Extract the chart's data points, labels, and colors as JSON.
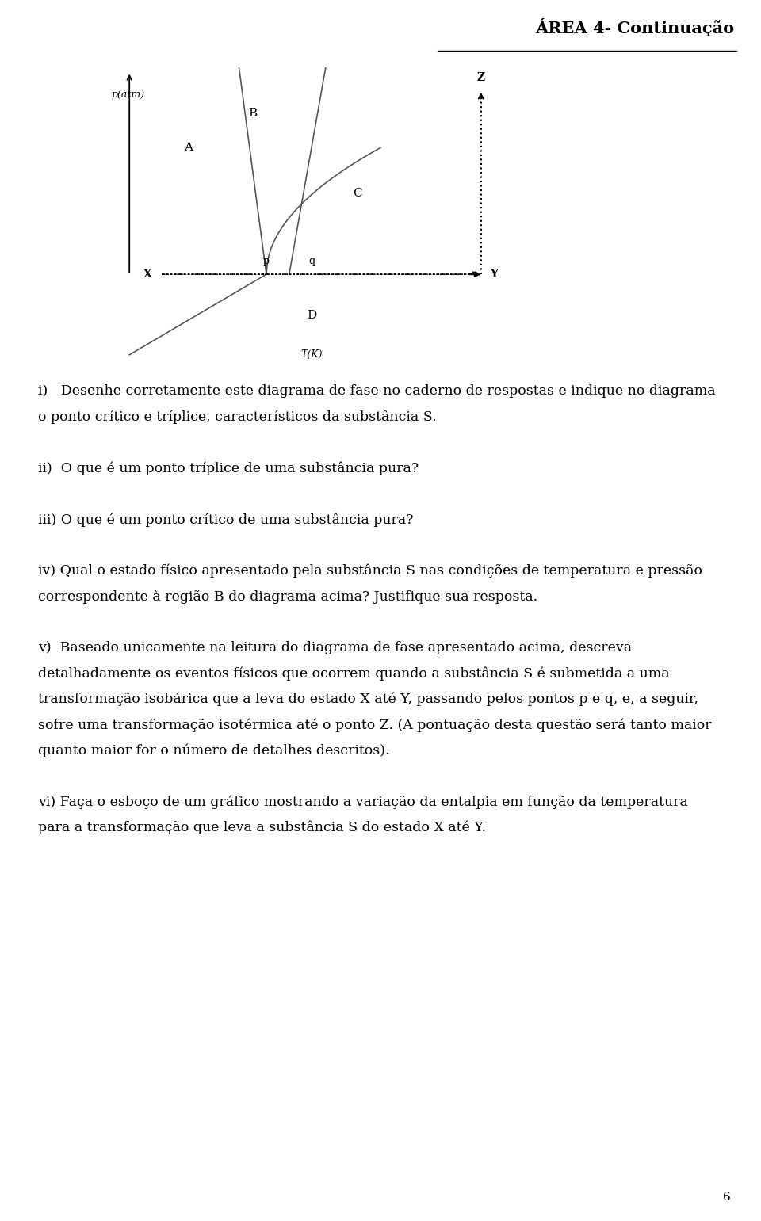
{
  "title": "ÁREA 4- Continuação",
  "page_number": "6",
  "background_color": "#ffffff",
  "text_color": "#000000",
  "diagram": {
    "ylabel": "p(atm)",
    "xlabel": "T(K)"
  },
  "q1_line1": "i)   Desenhe corretamente este diagrama de fase no caderno de respostas e indique no diagrama",
  "q1_line2": "o ponto crítico e tríplice, característicos da substância S.",
  "q2": "ii)  O que é um ponto tríplice de uma substância pura?",
  "q3": "iii) O que é um ponto crítico de uma substância pura?",
  "q4_line1": "iv) Qual o estado físico apresentado pela substância S nas condições de temperatura e pressão",
  "q4_line2": "correspondente à região B do diagrama acima? Justifique sua resposta.",
  "q5_line1": "v)  Baseado unicamente na leitura do diagrama de fase apresentado acima, descreva",
  "q5_line2": "detalhadamente os eventos físicos que ocorrem quando a substância S é submetida a uma",
  "q5_line3": "transformação isobárica que a leva do estado X até Y, passando pelos pontos p e q, e, a seguir,",
  "q5_line4": "sofre uma transformação isotérmica até o ponto Z. (A pontuação desta questão será tanto maior",
  "q5_line5": "quanto maior for o número de detalhes descritos).",
  "q6_line1": "vi) Faça o esboço de um gráfico mostrando a variação da entalpia em função da temperatura",
  "q6_line2": "para a transformação que leva a substância S do estado X até Y."
}
